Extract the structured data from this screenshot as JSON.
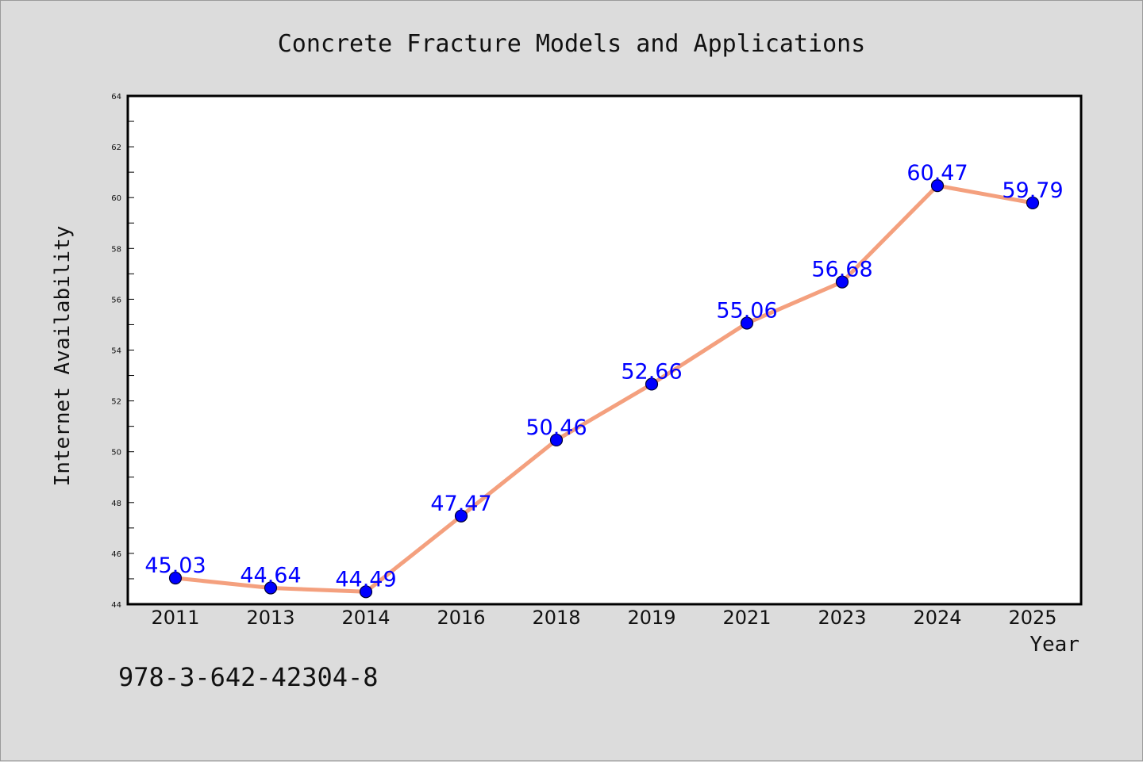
{
  "chart_data": {
    "type": "line",
    "title": "Concrete Fracture Models and Applications",
    "xlabel": "Year",
    "ylabel": "Internet Availability",
    "categories": [
      "2011",
      "2013",
      "2014",
      "2016",
      "2018",
      "2019",
      "2021",
      "2023",
      "2024",
      "2025"
    ],
    "series": [
      {
        "values": [
          45.03,
          44.64,
          44.49,
          47.47,
          50.46,
          52.66,
          55.06,
          56.68,
          60.47,
          59.79
        ],
        "data_labels": [
          "45.03",
          "44.64",
          "44.49",
          "47.47",
          "50.46",
          "52.66",
          "55.06",
          "56.68",
          "60.47",
          "59.79"
        ]
      }
    ],
    "ylim": [
      44,
      64
    ],
    "yticks": [
      "44",
      "46",
      "48",
      "50",
      "52",
      "54",
      "56",
      "58",
      "60",
      "62",
      "64"
    ],
    "grid": false,
    "legend": "none",
    "colors": {
      "line": "#f4a07e",
      "marker": "#0000ff",
      "label": "#0000ff",
      "background": "#dcdcdc",
      "plot_area": "#ffffff"
    },
    "annotation": "978-3-642-42304-8"
  }
}
